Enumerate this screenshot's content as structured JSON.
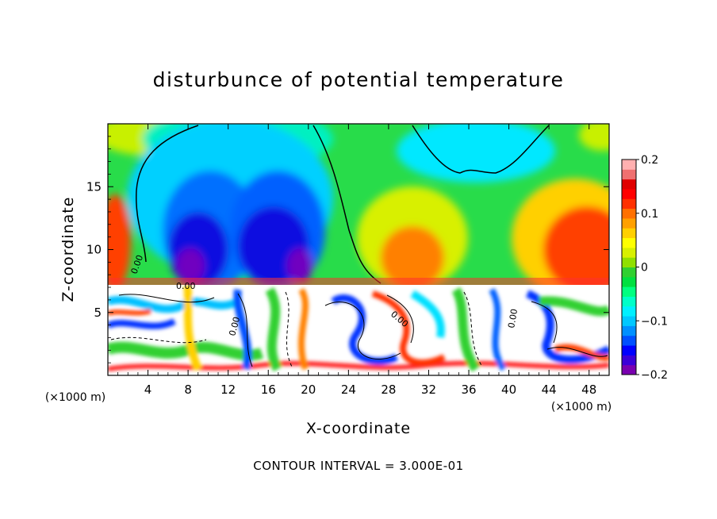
{
  "chart_data": {
    "type": "heatmap",
    "title": "disturbunce of potential temperature",
    "xlabel": "X-coordinate",
    "ylabel": "Z-coordinate",
    "x_unit": "(×1000 m)",
    "y_unit": "(×1000 m)",
    "x_ticks": [
      4,
      8,
      12,
      16,
      20,
      24,
      28,
      32,
      36,
      40,
      44,
      48
    ],
    "y_ticks": [
      5,
      10,
      15
    ],
    "xlim": [
      0,
      50
    ],
    "ylim": [
      0,
      20
    ],
    "colorbar": {
      "min": -0.2,
      "max": 0.2,
      "tick_values": [
        0.2,
        0.1,
        0,
        -0.1,
        -0.2
      ],
      "tick_labels": [
        "0.2",
        "0.1",
        "0",
        "−0.1",
        "−0.2"
      ],
      "colors": [
        "#7a00b0",
        "#3b00d8",
        "#0000ff",
        "#0050ff",
        "#0090ff",
        "#00c8ff",
        "#00f0ff",
        "#00ffc8",
        "#00ff80",
        "#00e040",
        "#30d030",
        "#90e000",
        "#d8f000",
        "#ffff00",
        "#ffd000",
        "#ffa000",
        "#ff7000",
        "#ff3000",
        "#ff0000",
        "#e00000",
        "#f07070",
        "#ffb0b0"
      ]
    },
    "contour_label": "0.00",
    "upper_region": {
      "z_range": [
        7.2,
        20
      ],
      "features": [
        {
          "name": "negative-core-left",
          "x": 9,
          "z": 10.5,
          "value": -0.2
        },
        {
          "name": "negative-core-center",
          "x": 16.5,
          "z": 10.5,
          "value": -0.19
        },
        {
          "name": "negative-core-right",
          "x": 19.5,
          "z": 9,
          "value": -0.2
        },
        {
          "name": "positive-left-edge",
          "x": 0.5,
          "z": 10,
          "value": 0.15
        },
        {
          "name": "positive-right-lobe",
          "x": 47,
          "z": 10,
          "value": 0.15
        },
        {
          "name": "positive-center-right",
          "x": 31,
          "z": 9,
          "value": 0.12
        },
        {
          "name": "negative-top-right",
          "x": 37,
          "z": 19,
          "value": -0.07
        }
      ]
    },
    "lower_region": {
      "z_range": [
        0,
        7.2
      ],
      "description_values": {
        "min": -0.2,
        "max": 0.2
      }
    }
  },
  "footnote": "CONTOUR INTERVAL = 3.000E-01"
}
